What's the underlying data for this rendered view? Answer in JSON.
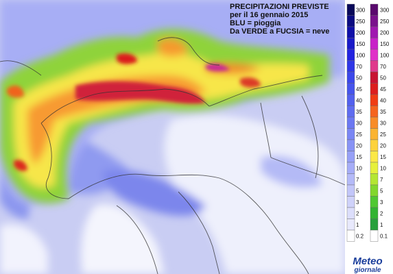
{
  "title_lines": [
    "PRECIPITAZIONI PREVISTE",
    "per il 16 gennaio 2015",
    "BLU = pioggia",
    "Da VERDE a FUCSIA = neve"
  ],
  "legend": {
    "rain": [
      {
        "value": 300,
        "color": "#0a0a5a"
      },
      {
        "value": 250,
        "color": "#0c0c82"
      },
      {
        "value": 200,
        "color": "#1010a8"
      },
      {
        "value": 150,
        "color": "#1a1ac8"
      },
      {
        "value": 100,
        "color": "#2323e0"
      },
      {
        "value": 70,
        "color": "#2f36e6"
      },
      {
        "value": 50,
        "color": "#3b47ea"
      },
      {
        "value": 45,
        "color": "#4654ec"
      },
      {
        "value": 40,
        "color": "#5260ee"
      },
      {
        "value": 35,
        "color": "#5f6cf0"
      },
      {
        "value": 30,
        "color": "#6c78f2"
      },
      {
        "value": 25,
        "color": "#7a86f4"
      },
      {
        "value": 20,
        "color": "#8893f5"
      },
      {
        "value": 15,
        "color": "#97a0f6"
      },
      {
        "value": 10,
        "color": "#a6adf7"
      },
      {
        "value": 7,
        "color": "#b4baf8"
      },
      {
        "value": 5,
        "color": "#c2c6f9"
      },
      {
        "value": 3,
        "color": "#cfd2fa"
      },
      {
        "value": 2,
        "color": "#dcdefb"
      },
      {
        "value": 1,
        "color": "#e8e9fc"
      },
      {
        "value": 0.2,
        "color": "#ffffff"
      }
    ],
    "snow": [
      {
        "value": 300,
        "color": "#5a0a6e"
      },
      {
        "value": 250,
        "color": "#7a128c"
      },
      {
        "value": 200,
        "color": "#a018b0"
      },
      {
        "value": 150,
        "color": "#c820c8"
      },
      {
        "value": 100,
        "color": "#e030c8"
      },
      {
        "value": 70,
        "color": "#e03a8c"
      },
      {
        "value": 50,
        "color": "#c81432"
      },
      {
        "value": 45,
        "color": "#dc1e1e"
      },
      {
        "value": 40,
        "color": "#f03c14"
      },
      {
        "value": 35,
        "color": "#f5641e"
      },
      {
        "value": 30,
        "color": "#f88c28"
      },
      {
        "value": 25,
        "color": "#fbb432"
      },
      {
        "value": 20,
        "color": "#fdd23c"
      },
      {
        "value": 15,
        "color": "#fbe846"
      },
      {
        "value": 10,
        "color": "#e6f03c"
      },
      {
        "value": 7,
        "color": "#b4e632"
      },
      {
        "value": 5,
        "color": "#82d72d"
      },
      {
        "value": 3,
        "color": "#50c832"
      },
      {
        "value": 2,
        "color": "#32b432"
      },
      {
        "value": 1,
        "color": "#28a03c"
      },
      {
        "value": 0.1,
        "color": "#ffffff"
      }
    ]
  },
  "logo": [
    "Meteo",
    "giornale"
  ]
}
